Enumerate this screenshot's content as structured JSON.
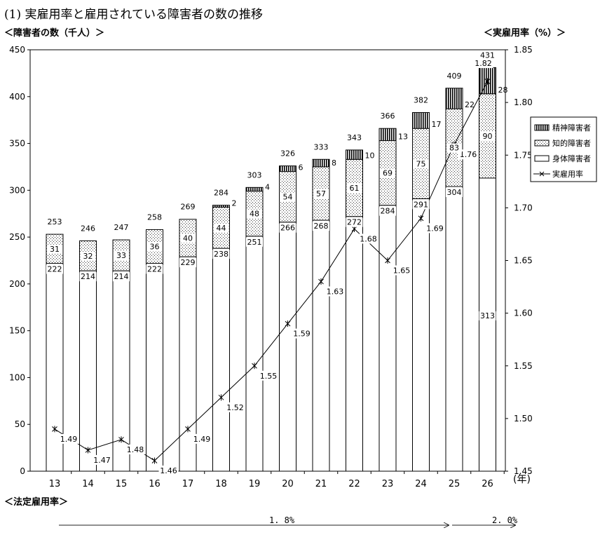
{
  "title": "(1) 実雇用率と雇用されている障害者の数の推移",
  "left_axis_title": "＜障害者の数（千人）＞",
  "right_axis_title": "＜実雇用率（%）＞",
  "x_unit": "(年)",
  "legal_rate_title": "＜法定雇用率＞",
  "legal_rates": [
    "1. 8%",
    "2. 0%"
  ],
  "chart_data": {
    "type": "bar",
    "categories": [
      "13",
      "14",
      "15",
      "16",
      "17",
      "18",
      "19",
      "20",
      "21",
      "22",
      "23",
      "24",
      "25",
      "26"
    ],
    "series": [
      {
        "name": "身体障害者",
        "values": [
          222,
          214,
          214,
          222,
          229,
          238,
          251,
          266,
          268,
          272,
          284,
          291,
          304,
          313
        ]
      },
      {
        "name": "知的障害者",
        "values": [
          31,
          32,
          33,
          36,
          40,
          44,
          48,
          54,
          57,
          61,
          69,
          75,
          83,
          90
        ]
      },
      {
        "name": "精神障害者",
        "values": [
          0,
          0,
          0,
          0,
          0,
          2,
          4,
          6,
          8,
          10,
          13,
          17,
          22,
          28
        ]
      }
    ],
    "totals": [
      253,
      246,
      247,
      258,
      269,
      284,
      303,
      326,
      333,
      343,
      366,
      382,
      409,
      431
    ],
    "line": {
      "name": "実雇用率",
      "values": [
        1.49,
        1.47,
        1.48,
        1.46,
        1.49,
        1.52,
        1.55,
        1.59,
        1.63,
        1.68,
        1.65,
        1.69,
        1.76,
        1.82
      ]
    },
    "ylim": [
      0,
      450
    ],
    "yticks": [
      0,
      50,
      100,
      150,
      200,
      250,
      300,
      350,
      400,
      450
    ],
    "y2lim": [
      1.45,
      1.85
    ],
    "y2ticks": [
      "1.45",
      "1.50",
      "1.55",
      "1.60",
      "1.65",
      "1.70",
      "1.75",
      "1.80",
      "1.85"
    ],
    "legend_order": [
      "精神障害者",
      "知的障害者",
      "身体障害者",
      "実雇用率"
    ],
    "legend_position": "right"
  }
}
